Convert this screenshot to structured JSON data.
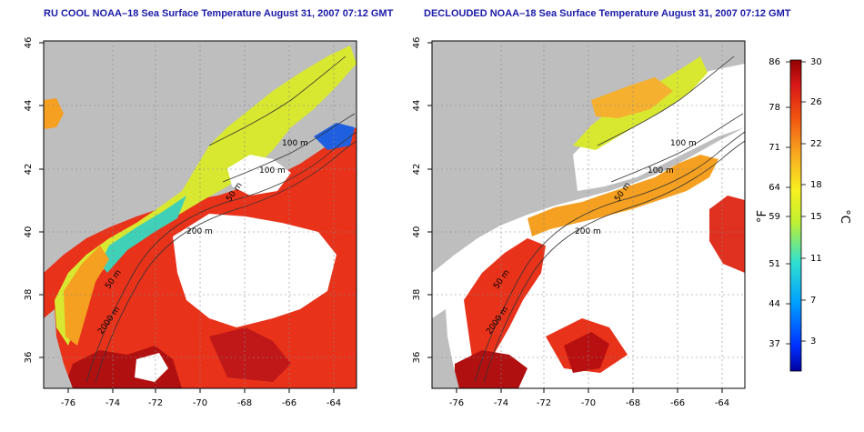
{
  "maps": [
    {
      "title": "RU COOL NOAA–18 Sea Surface Temperature August 31, 2007 07:12 GMT"
    },
    {
      "title": "DECLOUDED NOAA–18 Sea Surface Temperature August 31, 2007 07:12 GMT"
    }
  ],
  "axes": {
    "lon_ticks": [
      "-76",
      "-74",
      "-72",
      "-70",
      "-68",
      "-66",
      "-64"
    ],
    "lat_ticks": [
      "46",
      "44",
      "42",
      "40",
      "38",
      "36"
    ]
  },
  "contours": [
    "100 m",
    "100 m",
    "50 m",
    "200 m",
    "50 m",
    "2000 m"
  ],
  "colorbar": {
    "f_label": "°F",
    "c_label": "°C",
    "f_ticks": [
      "86",
      "78",
      "71",
      "64",
      "59",
      "51",
      "44",
      "37"
    ],
    "c_ticks": [
      "30",
      "26",
      "22",
      "18",
      "15",
      "11",
      "7",
      "3"
    ]
  },
  "colors": {
    "land": "#bebebe",
    "cloud": "#ffffff",
    "title": "#1a1aa8",
    "warm": "#e8321a",
    "hot": "#b01010",
    "mid": "#f5a020",
    "cool": "#d8e830",
    "cold": "#30c8c8"
  }
}
